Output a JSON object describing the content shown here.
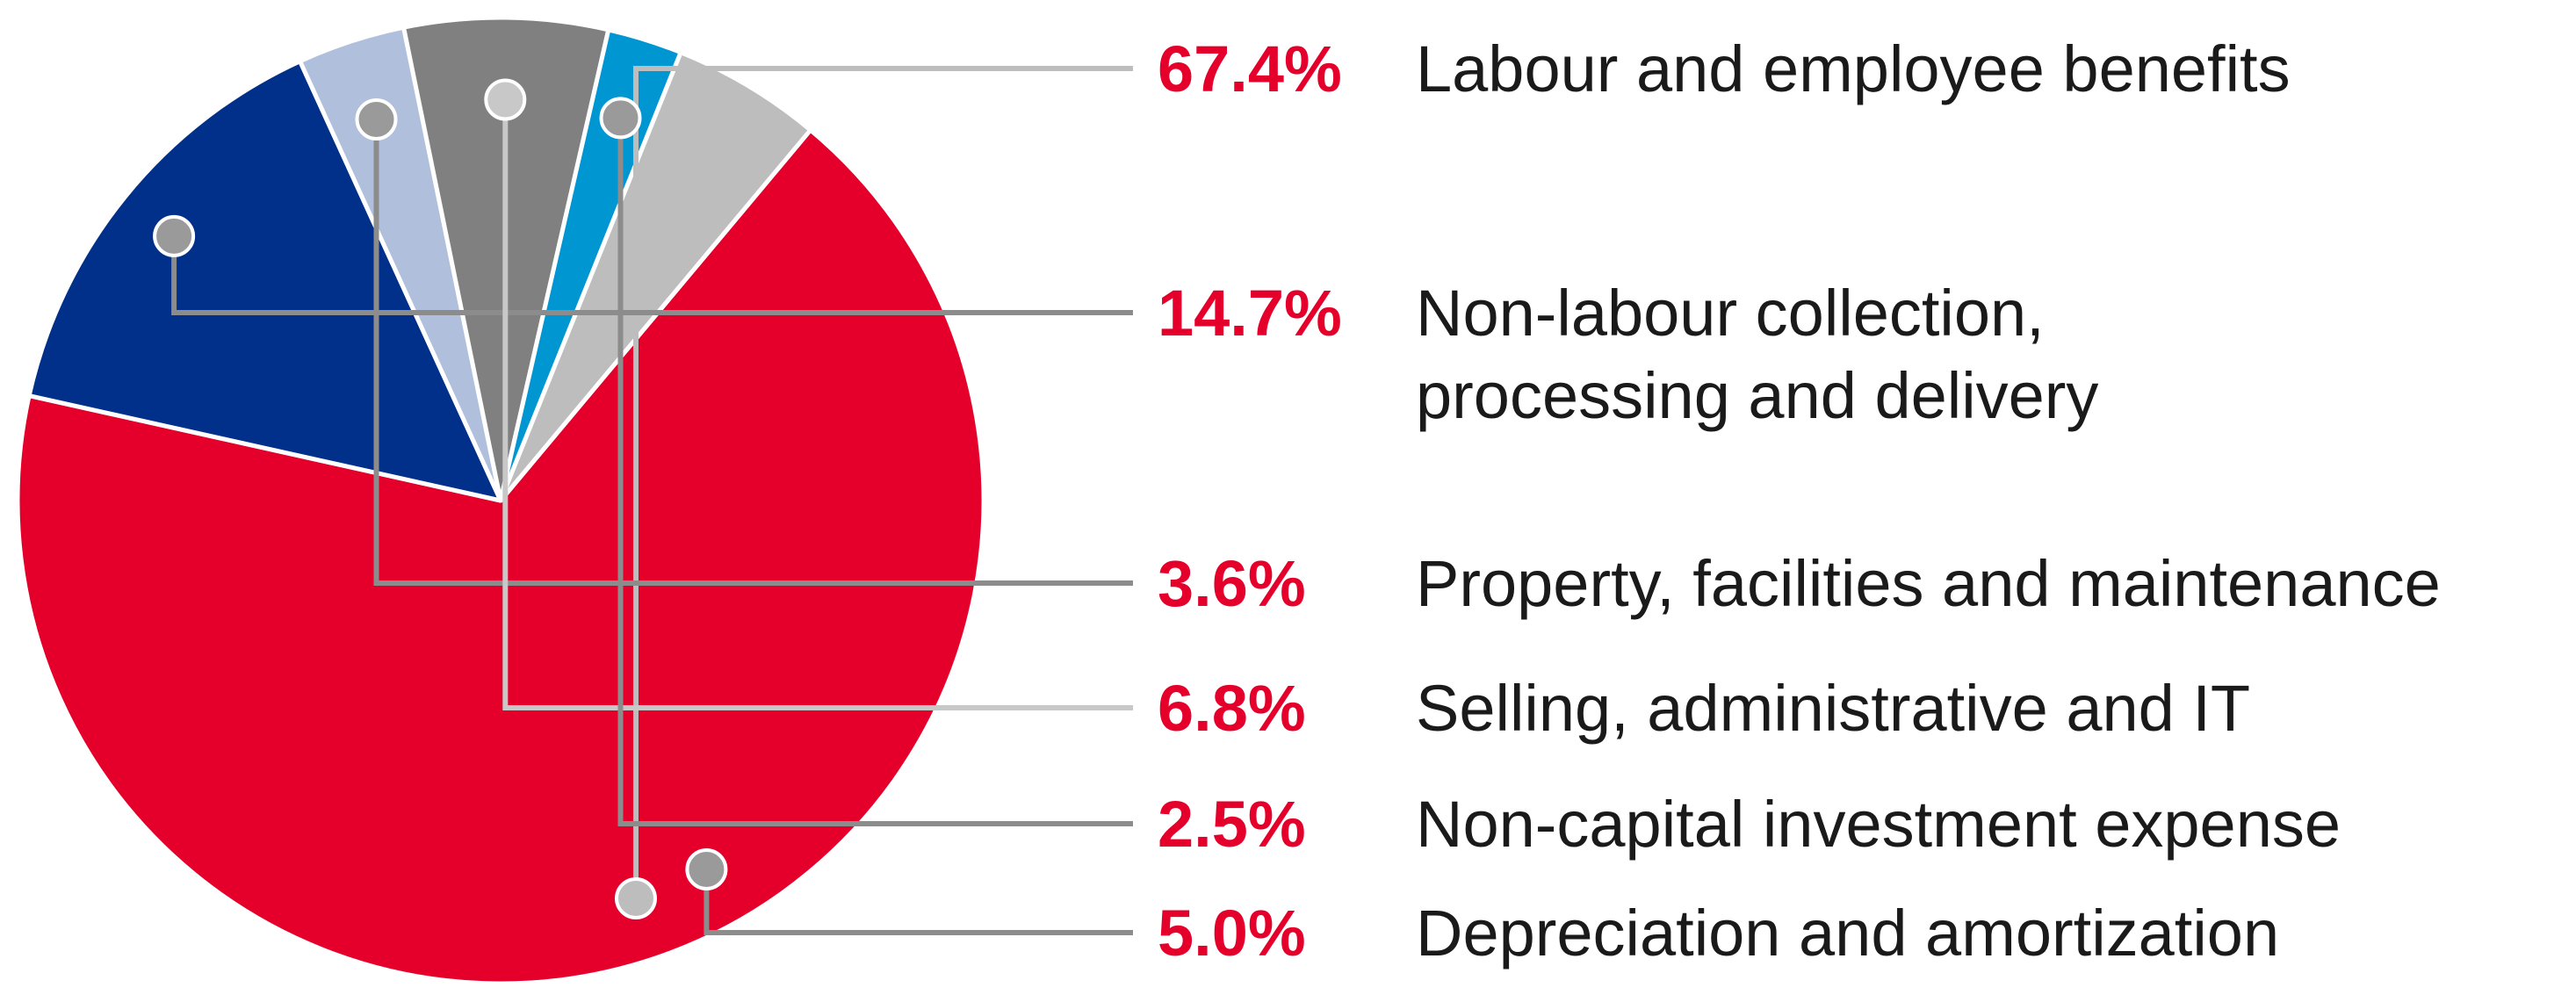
{
  "chart_data": {
    "type": "pie",
    "title": "",
    "start_angle_deg": 39.9,
    "direction": "clockwise",
    "slices": [
      {
        "label_lines": [
          "Labour and employee benefits"
        ],
        "value": 67.4,
        "value_label": "67.4%",
        "color": "#e4002b",
        "dot_color": "#bdbdbd",
        "leader_color": "#bdbdbd"
      },
      {
        "label_lines": [
          "Non-labour collection,",
          "processing and delivery"
        ],
        "value": 14.7,
        "value_label": "14.7%",
        "color": "#00308a",
        "dot_color": "#9a9a9a",
        "leader_color": "#8c8c8c"
      },
      {
        "label_lines": [
          "Property, facilities and maintenance"
        ],
        "value": 3.6,
        "value_label": "3.6%",
        "color": "#b0bfdb",
        "dot_color": "#9a9a9a",
        "leader_color": "#8c8c8c"
      },
      {
        "label_lines": [
          "Selling, administrative and IT"
        ],
        "value": 6.8,
        "value_label": "6.8%",
        "color": "#808080",
        "dot_color": "#c8c8c8",
        "leader_color": "#c8c8c8"
      },
      {
        "label_lines": [
          "Non-capital investment expense"
        ],
        "value": 2.5,
        "value_label": "2.5%",
        "color": "#0096d2",
        "dot_color": "#9a9a9a",
        "leader_color": "#8c8c8c"
      },
      {
        "label_lines": [
          "Depreciation and amortization"
        ],
        "value": 5.0,
        "value_label": "5.0%",
        "color": "#bdbdbd",
        "dot_color": "#9a9a9a",
        "leader_color": "#8c8c8c"
      }
    ],
    "legend_placement": "right",
    "value_label_color": "#e4002b"
  }
}
